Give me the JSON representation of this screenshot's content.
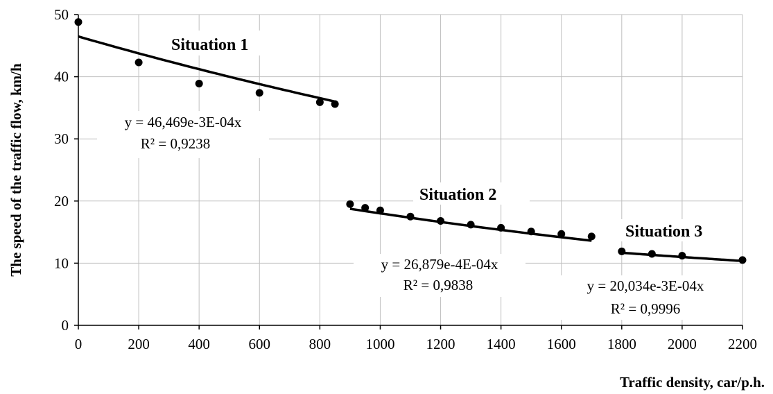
{
  "chart_data": {
    "type": "scatter",
    "xlabel": "Traffic density, car/p.h.",
    "ylabel": "The speed of the traffic flow, km/h",
    "xlim": [
      0,
      2200
    ],
    "ylim": [
      0,
      50
    ],
    "xticks": [
      0,
      200,
      400,
      600,
      800,
      1000,
      1200,
      1400,
      1600,
      1800,
      2000,
      2200
    ],
    "yticks": [
      0,
      10,
      20,
      30,
      40,
      50
    ],
    "grid": true,
    "colors": {
      "marker": "#000000",
      "grid": "#bfbfbf",
      "axis": "#000000"
    },
    "series": [
      {
        "name": "Situation 1",
        "x": [
          0,
          200,
          400,
          600,
          800,
          850
        ],
        "y": [
          48.8,
          42.3,
          38.9,
          37.4,
          35.9,
          35.6
        ],
        "trendline": {
          "a": 46.469,
          "b": -0.0003,
          "x_range": [
            0,
            850
          ],
          "equation": "y = 46,469e-3E-04x",
          "r2": "R² = 0,9238"
        }
      },
      {
        "name": "Situation 2",
        "x": [
          900,
          950,
          1000,
          1100,
          1200,
          1300,
          1400,
          1500,
          1600,
          1700
        ],
        "y": [
          19.5,
          18.9,
          18.5,
          17.5,
          16.8,
          16.2,
          15.7,
          15.1,
          14.7,
          14.3
        ],
        "trendline": {
          "a": 26.879,
          "b": -0.0004,
          "x_range": [
            900,
            1700
          ],
          "equation": "y = 26,879e-4E-04x",
          "r2": "R² = 0,9838"
        }
      },
      {
        "name": "Situation 3",
        "x": [
          1800,
          1900,
          2000,
          2200
        ],
        "y": [
          11.9,
          11.5,
          11.2,
          10.5
        ],
        "trendline": {
          "a": 20.034,
          "b": -0.0003,
          "x_range": [
            1800,
            2200
          ],
          "equation": "y = 20,034e-3E-04x",
          "r2": "R² = 0,9996"
        }
      }
    ]
  }
}
